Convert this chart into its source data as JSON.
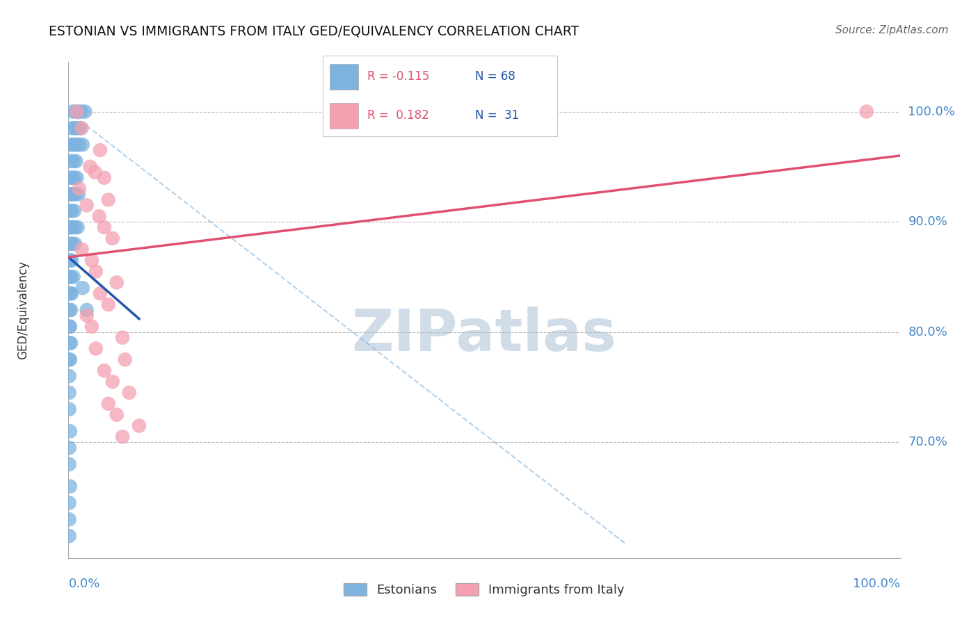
{
  "title": "ESTONIAN VS IMMIGRANTS FROM ITALY GED/EQUIVALENCY CORRELATION CHART",
  "source": "Source: ZipAtlas.com",
  "ylabel": "GED/Equivalency",
  "ytick_labels": [
    "100.0%",
    "90.0%",
    "80.0%",
    "70.0%"
  ],
  "ytick_values": [
    1.0,
    0.9,
    0.8,
    0.7
  ],
  "xmin": 0.0,
  "xmax": 1.0,
  "ymin": 0.595,
  "ymax": 1.045,
  "blue_color": "#7EB3E0",
  "pink_color": "#F4A0B0",
  "blue_line_color": "#2255AA",
  "pink_line_color": "#E05070",
  "axis_label_color": "#4488CC",
  "legend_R1": "-0.115",
  "legend_N1": "68",
  "legend_R2": "0.182",
  "legend_N2": "31",
  "blue_scatter_x": [
    0.005,
    0.009,
    0.012,
    0.016,
    0.02,
    0.004,
    0.007,
    0.011,
    0.014,
    0.002,
    0.005,
    0.008,
    0.01,
    0.013,
    0.017,
    0.003,
    0.006,
    0.009,
    0.002,
    0.005,
    0.007,
    0.01,
    0.001,
    0.003,
    0.006,
    0.009,
    0.012,
    0.002,
    0.004,
    0.007,
    0.001,
    0.003,
    0.005,
    0.008,
    0.011,
    0.001,
    0.003,
    0.005,
    0.008,
    0.001,
    0.002,
    0.004,
    0.001,
    0.003,
    0.006,
    0.001,
    0.002,
    0.004,
    0.001,
    0.003,
    0.001,
    0.002,
    0.001,
    0.003,
    0.001,
    0.002,
    0.001,
    0.001,
    0.001,
    0.002,
    0.001,
    0.001,
    0.002,
    0.001,
    0.001,
    0.001,
    0.017,
    0.022
  ],
  "blue_scatter_y": [
    1.0,
    1.0,
    1.0,
    1.0,
    1.0,
    0.985,
    0.985,
    0.985,
    0.985,
    0.97,
    0.97,
    0.97,
    0.97,
    0.97,
    0.97,
    0.955,
    0.955,
    0.955,
    0.94,
    0.94,
    0.94,
    0.94,
    0.925,
    0.925,
    0.925,
    0.925,
    0.925,
    0.91,
    0.91,
    0.91,
    0.895,
    0.895,
    0.895,
    0.895,
    0.895,
    0.88,
    0.88,
    0.88,
    0.88,
    0.865,
    0.865,
    0.865,
    0.85,
    0.85,
    0.85,
    0.835,
    0.835,
    0.835,
    0.82,
    0.82,
    0.805,
    0.805,
    0.79,
    0.79,
    0.775,
    0.775,
    0.76,
    0.745,
    0.73,
    0.71,
    0.695,
    0.68,
    0.66,
    0.645,
    0.63,
    0.615,
    0.84,
    0.82
  ],
  "pink_scatter_x": [
    0.01,
    0.016,
    0.038,
    0.026,
    0.032,
    0.043,
    0.013,
    0.048,
    0.022,
    0.037,
    0.043,
    0.053,
    0.016,
    0.028,
    0.033,
    0.058,
    0.038,
    0.048,
    0.022,
    0.028,
    0.065,
    0.033,
    0.068,
    0.043,
    0.053,
    0.073,
    0.048,
    0.058,
    0.085,
    0.065,
    0.96
  ],
  "pink_scatter_y": [
    1.0,
    0.985,
    0.965,
    0.95,
    0.945,
    0.94,
    0.93,
    0.92,
    0.915,
    0.905,
    0.895,
    0.885,
    0.875,
    0.865,
    0.855,
    0.845,
    0.835,
    0.825,
    0.815,
    0.805,
    0.795,
    0.785,
    0.775,
    0.765,
    0.755,
    0.745,
    0.735,
    0.725,
    0.715,
    0.705,
    1.0
  ],
  "blue_line_x": [
    0.0,
    0.085
  ],
  "blue_line_y": [
    0.868,
    0.812
  ],
  "pink_line_x": [
    0.0,
    1.0
  ],
  "pink_line_y": [
    0.868,
    0.96
  ],
  "diag_line_x": [
    0.0,
    0.67
  ],
  "diag_line_y": [
    1.0,
    0.608
  ]
}
